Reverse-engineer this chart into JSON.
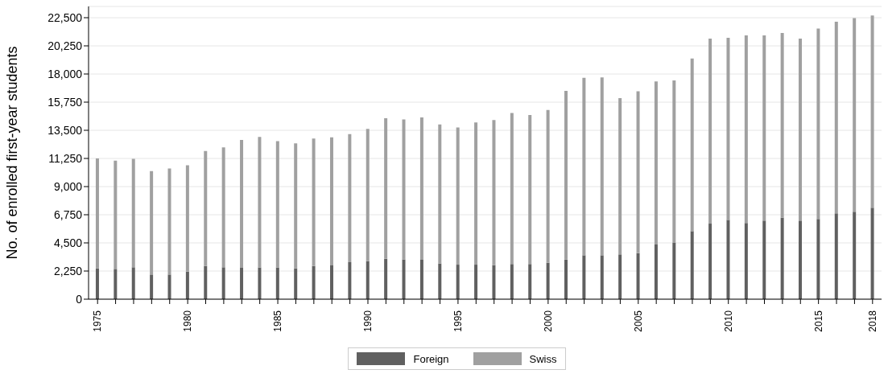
{
  "chart_data": {
    "type": "bar",
    "ylabel": "No. of enrolled first-year students",
    "categories": [
      "1975",
      null,
      null,
      null,
      null,
      "1980",
      null,
      null,
      null,
      null,
      "1985",
      null,
      null,
      null,
      null,
      "1990",
      null,
      null,
      null,
      null,
      "1995",
      null,
      null,
      null,
      null,
      "2000",
      null,
      null,
      null,
      null,
      "2005",
      null,
      null,
      null,
      null,
      "2010",
      null,
      null,
      null,
      null,
      "2015",
      null,
      null,
      "2018"
    ],
    "series": [
      {
        "name": "Foreign",
        "color": "#606060",
        "values": [
          2460,
          2420,
          2550,
          1970,
          1970,
          2210,
          2660,
          2550,
          2510,
          2530,
          2530,
          2460,
          2660,
          2740,
          2960,
          3040,
          3240,
          3170,
          3150,
          2850,
          2760,
          2760,
          2720,
          2810,
          2810,
          2910,
          3170,
          3510,
          3510,
          3580,
          3690,
          4370,
          4500,
          5440,
          6040,
          6340,
          6090,
          6280,
          6510,
          6280,
          6410,
          6860,
          6990,
          7310
        ]
      },
      {
        "name": "Swiss",
        "color": "#a0a0a0",
        "values": [
          8790,
          8660,
          8660,
          8270,
          8470,
          8500,
          9190,
          9580,
          10220,
          10440,
          10110,
          9990,
          10180,
          10200,
          10240,
          10570,
          11230,
          11190,
          11380,
          11120,
          10960,
          11360,
          11600,
          12080,
          11910,
          12220,
          13480,
          14190,
          14210,
          12490,
          12920,
          13030,
          12990,
          13800,
          14790,
          14550,
          15000,
          14810,
          14770,
          14550,
          15230,
          15320,
          15470,
          15360
        ]
      }
    ],
    "stacked": true,
    "ylim": [
      0,
      23400
    ],
    "yticks": [
      0,
      {
        "value": 2250,
        "label": "2,250"
      },
      {
        "value": 4500,
        "label": "4,500"
      },
      {
        "value": 6750,
        "label": "6,750"
      },
      {
        "value": 9000,
        "label": "9,000"
      },
      {
        "value": 11250,
        "label": "11,250"
      },
      {
        "value": 13500,
        "label": "13,500"
      },
      {
        "value": 15750,
        "label": "15,750"
      },
      {
        "value": 18000,
        "label": "18,000"
      },
      {
        "value": 20250,
        "label": "20,250"
      },
      {
        "value": 22500,
        "label": "22,500"
      }
    ],
    "grid": "y",
    "legend": "bottom"
  }
}
